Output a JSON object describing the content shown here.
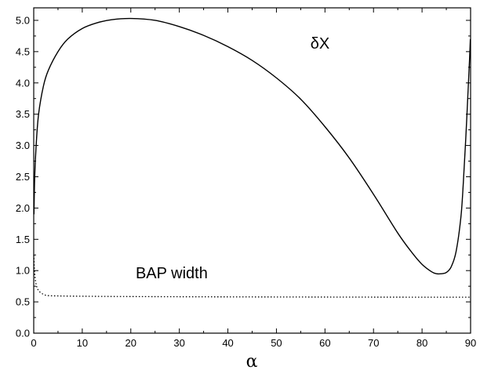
{
  "chart_data": {
    "type": "line",
    "title": "",
    "xlabel": "α",
    "ylabel": "",
    "xlim": [
      0,
      90
    ],
    "ylim": [
      0.0,
      5.2
    ],
    "x_ticks": [
      0,
      10,
      20,
      30,
      40,
      50,
      60,
      70,
      80,
      90
    ],
    "x_tick_labels": [
      "0",
      "10",
      "20",
      "30",
      "40",
      "50",
      "60",
      "70",
      "80",
      "90"
    ],
    "y_ticks": [
      0.0,
      0.5,
      1.0,
      1.5,
      2.0,
      2.5,
      3.0,
      3.5,
      4.0,
      4.5,
      5.0
    ],
    "y_tick_labels": [
      "0.0",
      "0.5",
      "1.0",
      "1.5",
      "2.0",
      "2.5",
      "3.0",
      "3.5",
      "4.0",
      "4.5",
      "5.0"
    ],
    "grid": false,
    "legend": "none",
    "annotations": [
      {
        "text": "δX",
        "x": 57,
        "y": 4.55
      },
      {
        "text": "BAP width",
        "x": 21,
        "y": 0.88
      }
    ],
    "series": [
      {
        "label": "δX",
        "style": "solid",
        "color": "#000000",
        "x": [
          0.05,
          0.2,
          0.5,
          1,
          2,
          3,
          5,
          7,
          10,
          13,
          16,
          20,
          25,
          30,
          35,
          40,
          45,
          50,
          55,
          60,
          65,
          70,
          75,
          78,
          80,
          82,
          83,
          84,
          85,
          86,
          87,
          88,
          88.5,
          89,
          89.5,
          89.8,
          89.95
        ],
        "y": [
          1.9,
          2.5,
          3.0,
          3.5,
          3.95,
          4.2,
          4.5,
          4.7,
          4.87,
          4.96,
          5.01,
          5.03,
          5.0,
          4.9,
          4.76,
          4.58,
          4.36,
          4.08,
          3.74,
          3.3,
          2.8,
          2.22,
          1.6,
          1.28,
          1.1,
          0.98,
          0.95,
          0.95,
          0.97,
          1.06,
          1.3,
          1.85,
          2.4,
          3.1,
          3.9,
          4.4,
          4.7
        ]
      },
      {
        "label": "BAP width",
        "style": "dotted",
        "color": "#000000",
        "x": [
          0.02,
          0.2,
          0.5,
          1,
          2,
          3,
          5,
          10,
          20,
          40,
          60,
          80,
          90
        ],
        "y": [
          1.25,
          0.95,
          0.78,
          0.68,
          0.62,
          0.6,
          0.595,
          0.59,
          0.585,
          0.58,
          0.577,
          0.575,
          0.575
        ]
      }
    ]
  }
}
